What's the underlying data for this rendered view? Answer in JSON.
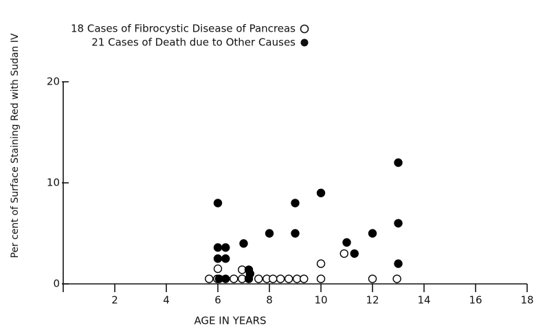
{
  "chart_data": {
    "type": "scatter",
    "xlabel": "AGE IN YEARS",
    "ylabel": "Per cent of Surface Staining Red with Sudan IV",
    "xlim": [
      0,
      18
    ],
    "xticks": [
      2,
      4,
      6,
      8,
      10,
      12,
      14,
      16,
      18
    ],
    "ylim": [
      0,
      20
    ],
    "yticks": [
      0,
      10,
      20
    ],
    "legend": "top",
    "series": [
      {
        "name": "18 Cases of Fibrocystic Disease of Pancreas",
        "color": "#000000",
        "filled": false,
        "x": [
          5.66,
          5.98,
          6.62,
          6.94,
          7.58,
          7.9,
          8.14,
          8.43,
          8.75,
          9.07,
          9.34,
          10.0,
          12.0,
          12.95,
          6.0,
          6.94,
          10.0,
          10.9
        ],
        "values": [
          0.5,
          0.5,
          0.5,
          0.5,
          0.5,
          0.5,
          0.5,
          0.5,
          0.5,
          0.5,
          0.5,
          0.5,
          0.5,
          0.5,
          1.5,
          1.4,
          2.0,
          3.0
        ]
      },
      {
        "name": "21 Cases of Death due to Other Causes",
        "color": "#000000",
        "filled": true,
        "x": [
          6.0,
          6.0,
          6.3,
          6.0,
          6.3,
          6.3,
          7.0,
          7.2,
          7.2,
          7.25,
          6.05,
          8.0,
          9.0,
          9.0,
          10.0,
          11.0,
          11.3,
          12.0,
          13.0,
          13.0,
          13.0
        ],
        "values": [
          8,
          3.6,
          3.6,
          2.5,
          2.5,
          0.5,
          4,
          1.4,
          0.5,
          1.0,
          0.5,
          5,
          8,
          5,
          9,
          4.1,
          3,
          5,
          12,
          6,
          2
        ]
      }
    ]
  }
}
